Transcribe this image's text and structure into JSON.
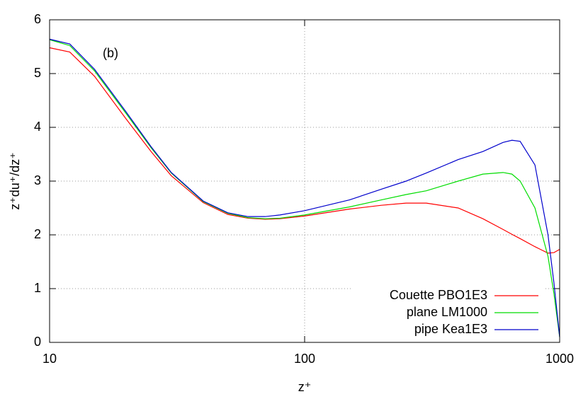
{
  "chart_data": {
    "type": "line",
    "annotation": "(b)",
    "xlabel": "z⁺",
    "ylabel": "z⁺du⁺/dz⁺",
    "xscale": "log",
    "grid": true,
    "legend": "lower right",
    "xlim": [
      10,
      1000
    ],
    "xticks": [
      10,
      100,
      1000
    ],
    "ylim": [
      0,
      6
    ],
    "yticks": [
      0,
      1,
      2,
      3,
      4,
      5,
      6
    ],
    "x": [
      10,
      12,
      15,
      20,
      25,
      30,
      40,
      50,
      60,
      70,
      80,
      100,
      150,
      200,
      250,
      300,
      400,
      500,
      600,
      650,
      700,
      800,
      900,
      950,
      1000
    ],
    "series": [
      {
        "name": "Couette PBO1E3",
        "color": "#ff0000",
        "values": [
          5.48,
          5.4,
          4.95,
          4.15,
          3.55,
          3.1,
          2.6,
          2.38,
          2.31,
          2.29,
          2.3,
          2.35,
          2.48,
          2.55,
          2.59,
          2.59,
          2.5,
          2.3,
          2.1,
          2.01,
          1.93,
          1.78,
          1.66,
          1.67,
          1.73
        ]
      },
      {
        "name": "plane LM1000",
        "color": "#00dd00",
        "values": [
          5.63,
          5.52,
          5.05,
          4.25,
          3.62,
          3.15,
          2.62,
          2.4,
          2.32,
          2.3,
          2.31,
          2.37,
          2.52,
          2.65,
          2.75,
          2.82,
          3.0,
          3.13,
          3.16,
          3.13,
          3.0,
          2.5,
          1.6,
          0.9,
          0.1
        ]
      },
      {
        "name": "pipe Kea1E3",
        "color": "#0000cc",
        "values": [
          5.64,
          5.55,
          5.08,
          4.28,
          3.64,
          3.16,
          2.63,
          2.41,
          2.34,
          2.34,
          2.37,
          2.45,
          2.65,
          2.85,
          3.0,
          3.15,
          3.4,
          3.55,
          3.72,
          3.76,
          3.74,
          3.3,
          2.0,
          1.1,
          0.1
        ]
      }
    ]
  }
}
